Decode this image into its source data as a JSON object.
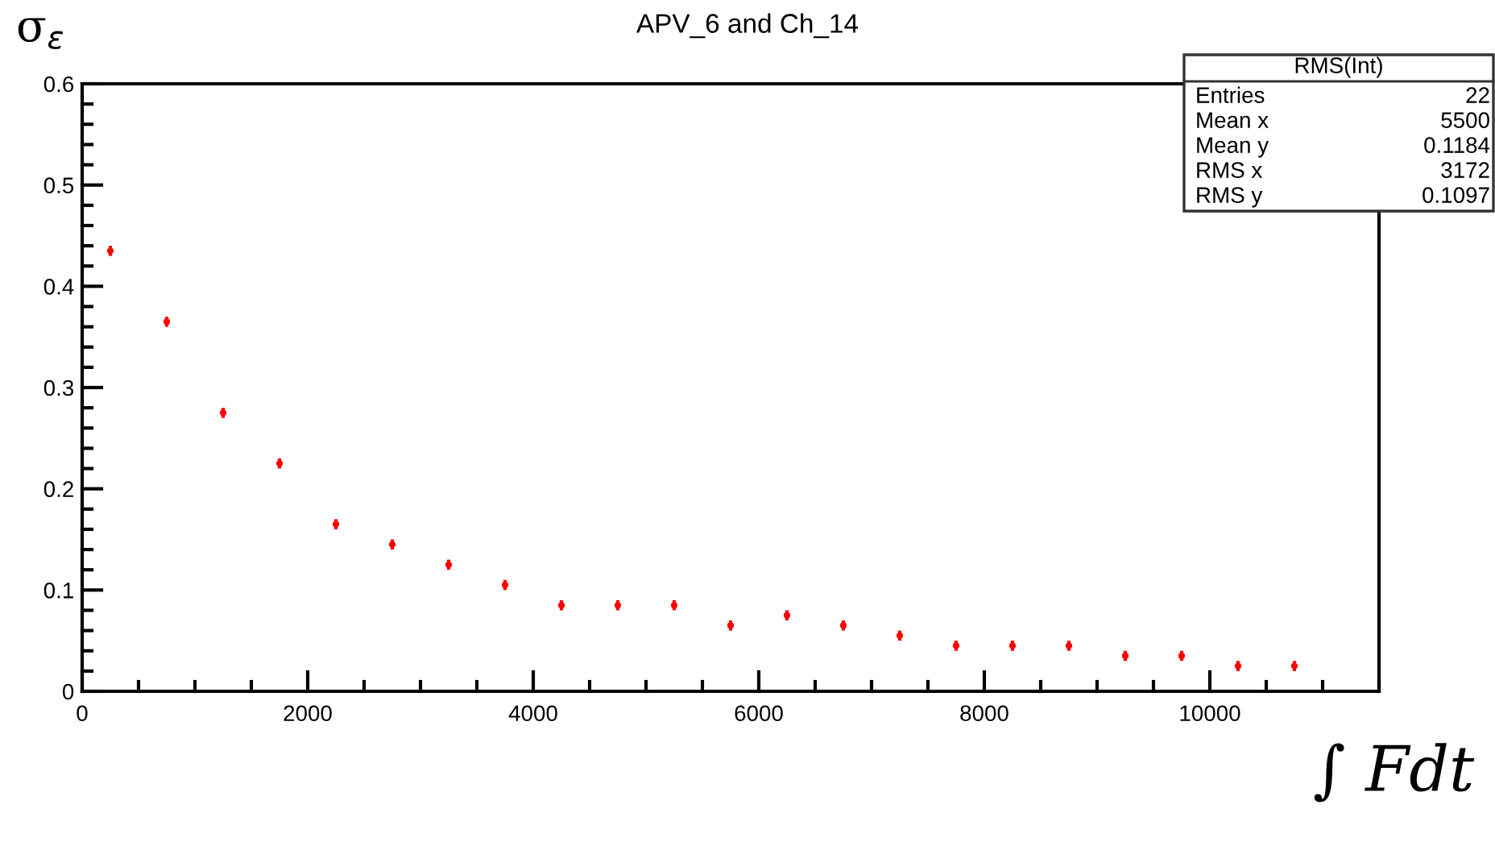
{
  "chart_data": {
    "type": "scatter",
    "title": "APV_6 and Ch_14",
    "ylabel": "σ$_{ε}$",
    "xlabel": "∫ Fdt",
    "x": [
      250,
      750,
      1250,
      1750,
      2250,
      2750,
      3250,
      3750,
      4250,
      4750,
      5250,
      5750,
      6250,
      6750,
      7250,
      7750,
      8250,
      8750,
      9250,
      9750,
      10250,
      10750
    ],
    "values": [
      0.435,
      0.365,
      0.275,
      0.225,
      0.165,
      0.145,
      0.125,
      0.105,
      0.085,
      0.085,
      0.085,
      0.065,
      0.075,
      0.065,
      0.055,
      0.045,
      0.045,
      0.045,
      0.035,
      0.035,
      0.025,
      0.025
    ],
    "errors": [
      0.005,
      0.005,
      0.005,
      0.005,
      0.005,
      0.005,
      0.005,
      0.005,
      0.005,
      0.005,
      0.005,
      0.005,
      0.005,
      0.005,
      0.005,
      0.005,
      0.005,
      0.005,
      0.005,
      0.005,
      0.005,
      0.005
    ],
    "color": "#ff0000",
    "marker": "circle",
    "grid": false,
    "xlim": [
      0,
      11500
    ],
    "xticks": [
      0,
      2000,
      4000,
      6000,
      8000,
      10000
    ],
    "ylim": [
      0,
      0.6
    ],
    "yticks": [
      0,
      0.1,
      0.2,
      0.3,
      0.4,
      0.5,
      0.6
    ],
    "annotations": [
      "RMS(Int)",
      "Entries",
      "22",
      "Mean x",
      "5500",
      "Mean y",
      "0.1184",
      "RMS x",
      "3172",
      "RMS y",
      "0.1097"
    ]
  }
}
